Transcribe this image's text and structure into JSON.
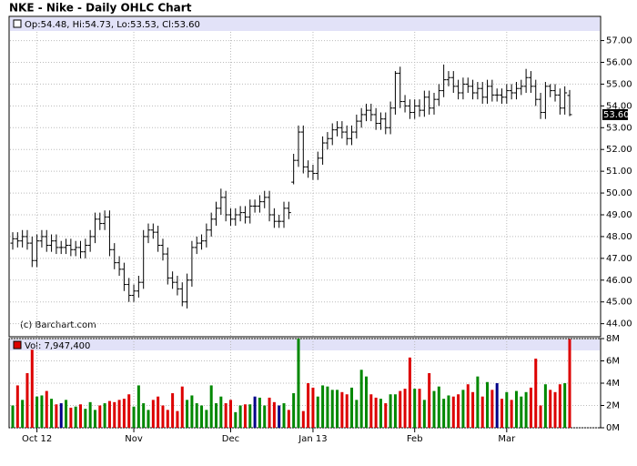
{
  "chart_data": [
    {
      "type": "ohlc",
      "title": "NKE - Nike - Daily OHLC Chart",
      "legend_text": "Op:54.48, Hi:54.73, Lo:53.53, Cl:53.60",
      "credit": "(c) Barchart.com",
      "color": "#000000",
      "open": [
        47.7,
        47.9,
        47.8,
        48.0,
        47.7,
        46.9,
        47.8,
        48.0,
        47.6,
        47.8,
        47.5,
        47.5,
        47.6,
        47.4,
        47.5,
        47.3,
        47.6,
        48.0,
        48.8,
        48.6,
        48.9,
        47.4,
        46.8,
        46.5,
        45.8,
        45.3,
        45.5,
        45.9,
        48.0,
        48.3,
        48.2,
        47.6,
        47.2,
        46.1,
        45.9,
        45.6,
        45.0,
        46.0,
        47.5,
        47.7,
        47.8,
        48.3,
        48.8,
        49.3,
        49.8,
        49.0,
        48.8,
        49.0,
        49.1,
        48.9,
        49.4,
        49.4,
        49.6,
        49.8,
        49.0,
        48.7,
        48.7,
        49.3,
        50.5,
        51.5,
        52.8,
        51.2,
        51.0,
        50.9,
        51.6,
        52.3,
        52.5,
        52.9,
        53.0,
        52.8,
        52.5,
        52.8,
        53.3,
        53.6,
        53.8,
        53.6,
        53.2,
        53.4,
        53.0,
        53.9,
        55.5,
        54.2,
        54.0,
        53.7,
        54.0,
        53.8,
        54.4,
        53.9,
        54.3,
        54.7,
        55.2,
        55.3,
        54.9,
        54.6,
        55.0,
        54.9,
        54.6,
        54.8,
        54.4,
        54.9,
        54.5,
        54.5,
        54.4,
        54.7,
        54.6,
        54.8,
        54.9,
        55.3,
        54.9,
        54.3,
        53.7,
        54.9,
        54.7,
        54.5,
        53.9,
        54.48
      ],
      "high": [
        48.2,
        48.2,
        48.3,
        48.3,
        48.0,
        48.1,
        48.3,
        48.3,
        48.1,
        48.1,
        47.8,
        47.9,
        47.9,
        47.8,
        47.8,
        47.9,
        48.3,
        49.1,
        49.1,
        49.2,
        49.2,
        47.7,
        47.1,
        46.8,
        46.1,
        45.8,
        46.2,
        48.3,
        48.6,
        48.6,
        48.5,
        47.9,
        47.5,
        46.4,
        46.2,
        45.9,
        46.3,
        47.8,
        48.0,
        48.1,
        48.6,
        49.1,
        49.6,
        50.2,
        50.1,
        49.3,
        49.3,
        49.4,
        49.4,
        49.7,
        49.7,
        49.9,
        50.1,
        50.1,
        49.3,
        49.0,
        49.6,
        49.6,
        51.8,
        53.1,
        53.1,
        51.5,
        51.3,
        51.9,
        52.6,
        52.8,
        53.2,
        53.3,
        53.3,
        53.1,
        53.1,
        53.6,
        53.9,
        54.1,
        54.1,
        53.9,
        53.7,
        53.7,
        54.2,
        55.6,
        55.8,
        54.5,
        54.3,
        54.3,
        54.3,
        54.7,
        54.7,
        54.6,
        55.0,
        55.9,
        55.6,
        55.6,
        55.2,
        55.3,
        55.3,
        55.2,
        55.1,
        55.1,
        55.2,
        55.2,
        54.8,
        54.8,
        55.0,
        55.0,
        55.1,
        55.2,
        55.7,
        55.6,
        55.2,
        54.6,
        55.1,
        55.0,
        55.0,
        54.8,
        54.9,
        54.73
      ],
      "low": [
        47.4,
        47.5,
        47.5,
        47.4,
        46.6,
        46.6,
        47.5,
        47.3,
        47.3,
        47.2,
        47.2,
        47.2,
        47.1,
        47.1,
        47.0,
        47.0,
        47.3,
        47.7,
        48.3,
        48.3,
        47.1,
        46.5,
        46.2,
        45.5,
        45.0,
        45.0,
        45.2,
        45.6,
        47.7,
        47.9,
        47.3,
        46.9,
        45.8,
        45.6,
        45.3,
        44.8,
        44.7,
        45.7,
        47.2,
        47.4,
        47.5,
        48.0,
        48.5,
        49.0,
        48.7,
        48.5,
        48.5,
        48.7,
        48.6,
        48.6,
        49.1,
        49.1,
        49.3,
        48.7,
        48.4,
        48.4,
        48.4,
        48.8,
        50.4,
        51.2,
        50.9,
        50.7,
        50.6,
        50.6,
        51.3,
        52.0,
        52.2,
        52.6,
        52.5,
        52.2,
        52.2,
        52.5,
        53.0,
        53.3,
        53.3,
        52.9,
        52.9,
        52.7,
        52.7,
        53.6,
        53.9,
        53.7,
        53.4,
        53.4,
        53.5,
        53.5,
        53.6,
        53.6,
        54.0,
        54.4,
        54.9,
        54.6,
        54.3,
        54.3,
        54.6,
        54.3,
        54.3,
        54.1,
        54.1,
        54.2,
        54.2,
        54.1,
        54.1,
        54.3,
        54.3,
        54.5,
        54.6,
        54.6,
        54.0,
        53.4,
        53.4,
        54.4,
        54.2,
        53.6,
        53.6,
        53.53
      ],
      "close": [
        47.9,
        47.8,
        48.0,
        47.7,
        46.9,
        47.8,
        48.0,
        47.6,
        47.8,
        47.5,
        47.5,
        47.6,
        47.4,
        47.5,
        47.3,
        47.6,
        48.0,
        48.8,
        48.6,
        48.9,
        47.4,
        46.8,
        46.5,
        45.8,
        45.3,
        45.5,
        45.9,
        48.0,
        48.3,
        48.2,
        47.6,
        47.2,
        46.1,
        45.9,
        45.6,
        45.0,
        46.0,
        47.5,
        47.7,
        47.8,
        48.3,
        48.8,
        49.3,
        49.8,
        49.0,
        48.8,
        49.0,
        49.1,
        48.9,
        49.4,
        49.4,
        49.6,
        49.8,
        49.0,
        48.7,
        48.7,
        49.3,
        49.1,
        51.5,
        52.8,
        51.2,
        51.0,
        50.9,
        51.6,
        52.3,
        52.5,
        52.9,
        53.0,
        52.8,
        52.5,
        52.8,
        53.3,
        53.6,
        53.8,
        53.6,
        53.2,
        53.4,
        53.0,
        53.9,
        55.5,
        54.2,
        54.0,
        53.7,
        54.0,
        53.8,
        54.4,
        53.9,
        54.3,
        54.7,
        55.2,
        55.3,
        54.9,
        54.6,
        55.0,
        54.9,
        54.6,
        54.8,
        54.4,
        54.9,
        54.5,
        54.5,
        54.4,
        54.7,
        54.6,
        54.8,
        54.9,
        55.3,
        54.9,
        54.3,
        53.7,
        54.9,
        54.7,
        54.5,
        53.9,
        54.6,
        53.6
      ],
      "last_price": {
        "value": 53.6,
        "label": "53.60"
      },
      "ylim": [
        43.4,
        57.4
      ],
      "yticks": [
        {
          "value": 44,
          "label": "44.00"
        },
        {
          "value": 45,
          "label": "45.00"
        },
        {
          "value": 46,
          "label": "46.00"
        },
        {
          "value": 47,
          "label": "47.00"
        },
        {
          "value": 48,
          "label": "48.00"
        },
        {
          "value": 49,
          "label": "49.00"
        },
        {
          "value": 50,
          "label": "50.00"
        },
        {
          "value": 51,
          "label": "51.00"
        },
        {
          "value": 52,
          "label": "52.00"
        },
        {
          "value": 53,
          "label": "53.00"
        },
        {
          "value": 54,
          "label": "54.00"
        },
        {
          "value": 55,
          "label": "55.00"
        },
        {
          "value": 56,
          "label": "56.00"
        },
        {
          "value": 57,
          "label": "57.00"
        }
      ],
      "xlim": [
        0,
        115
      ],
      "xticks": [
        {
          "value": 5,
          "label": "Oct 12"
        },
        {
          "value": 25,
          "label": "Nov"
        },
        {
          "value": 45,
          "label": "Dec"
        },
        {
          "value": 62,
          "label": "Jan 13"
        },
        {
          "value": 83,
          "label": "Feb"
        },
        {
          "value": 102,
          "label": "Mar"
        }
      ],
      "grid": true
    },
    {
      "type": "volume",
      "legend_text": "Vol: 7,947,400",
      "legend_color": "#dd0000",
      "up_color": "#008800",
      "down_color": "#dd0000",
      "unchanged_color": "#000088",
      "values": [
        2.0,
        3.8,
        2.5,
        4.9,
        7.0,
        2.8,
        2.9,
        3.3,
        2.6,
        2.1,
        2.2,
        2.5,
        1.8,
        1.9,
        2.1,
        1.7,
        2.3,
        1.6,
        2.0,
        2.2,
        2.4,
        2.3,
        2.5,
        2.6,
        3.0,
        1.9,
        3.8,
        2.2,
        1.6,
        2.5,
        2.8,
        2.0,
        1.6,
        3.1,
        1.5,
        3.7,
        2.5,
        2.9,
        2.2,
        2.0,
        1.6,
        3.8,
        2.2,
        2.8,
        2.2,
        2.5,
        1.4,
        2.0,
        2.1,
        2.1,
        2.8,
        2.7,
        2.0,
        2.7,
        2.3,
        2.0,
        2.2,
        1.6,
        3.1,
        8.0,
        1.5,
        4.0,
        3.6,
        2.8,
        3.8,
        3.7,
        3.4,
        3.4,
        3.2,
        3.0,
        3.6,
        2.5,
        5.2,
        4.6,
        3.0,
        2.7,
        2.6,
        2.2,
        3.0,
        3.0,
        3.3,
        3.5,
        6.3,
        3.5,
        3.5,
        2.5,
        4.9,
        3.3,
        3.7,
        2.6,
        2.9,
        2.8,
        3.0,
        3.4,
        3.9,
        3.2,
        4.6,
        2.8,
        4.1,
        3.4,
        4.0,
        2.6,
        3.2,
        2.5,
        3.3,
        2.8,
        3.2,
        3.6,
        6.2,
        2.0,
        3.9,
        3.4,
        3.2,
        3.9,
        4.0,
        7.9474
      ],
      "ylim": [
        0,
        8
      ],
      "yticks": [
        {
          "value": 0,
          "label": "0M"
        },
        {
          "value": 2,
          "label": "2M"
        },
        {
          "value": 4,
          "label": "4M"
        },
        {
          "value": 6,
          "label": "6M"
        },
        {
          "value": 8,
          "label": "8M"
        }
      ],
      "grid": true
    }
  ]
}
